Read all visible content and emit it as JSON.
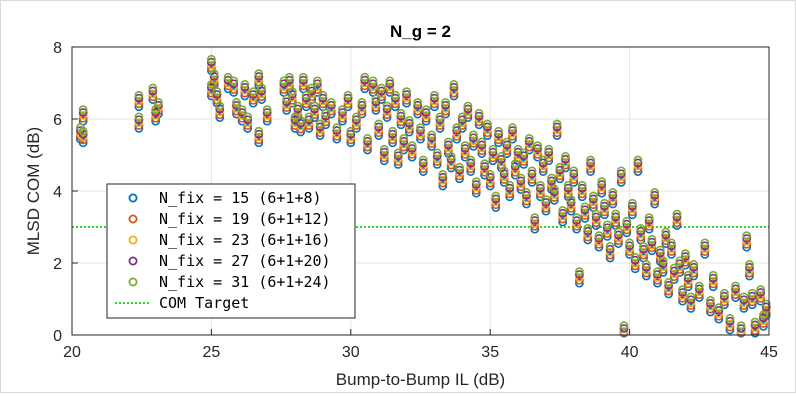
{
  "colors": {
    "background": "#ffffff",
    "axes": "#262626",
    "grid": "#e6e6e6",
    "target": "#22dd22"
  },
  "chart_data": {
    "type": "scatter",
    "title": "N_g = 2",
    "xlabel": "Bump-to-Bump IL (dB)",
    "ylabel": "MLSD COM (dB)",
    "xlim": [
      20,
      45
    ],
    "ylim": [
      0,
      8
    ],
    "xticks": [
      "20",
      "25",
      "30",
      "35",
      "40",
      "45"
    ],
    "yticks": [
      "0",
      "2",
      "4",
      "6",
      "8"
    ],
    "grid": true,
    "legend_position": "lower-left",
    "target": {
      "name": "COM Target",
      "y": 3,
      "color": "#22dd22",
      "style": "dotted"
    },
    "series": [
      {
        "name": "N_fix = 15 (6+1+8)",
        "color": "#0072bd",
        "dy": -0.16
      },
      {
        "name": "N_fix = 19 (6+1+12)",
        "color": "#d95319",
        "dy": -0.08
      },
      {
        "name": "N_fix = 23 (6+1+16)",
        "color": "#edb120",
        "dy": 0.0
      },
      {
        "name": "N_fix = 27 (6+1+20)",
        "color": "#7e2f8e",
        "dy": 0.08
      },
      {
        "name": "N_fix = 31 (6+1+24)",
        "color": "#77ac30",
        "dy": 0.16
      }
    ],
    "points": [
      [
        20.4,
        5.5
      ],
      [
        20.4,
        6.1
      ],
      [
        20.3,
        5.6
      ],
      [
        22.4,
        5.9
      ],
      [
        22.4,
        6.5
      ],
      [
        22.9,
        6.7
      ],
      [
        23.0,
        6.1
      ],
      [
        23.1,
        6.3
      ],
      [
        25.0,
        7.5
      ],
      [
        25.1,
        7.1
      ],
      [
        25.2,
        6.6
      ],
      [
        25.0,
        6.8
      ],
      [
        25.3,
        6.2
      ],
      [
        25.8,
        6.9
      ],
      [
        25.6,
        7.0
      ],
      [
        25.9,
        6.3
      ],
      [
        26.2,
        6.8
      ],
      [
        26.1,
        6.1
      ],
      [
        26.3,
        5.9
      ],
      [
        26.5,
        6.6
      ],
      [
        26.7,
        7.1
      ],
      [
        26.8,
        6.7
      ],
      [
        26.7,
        5.5
      ],
      [
        27.0,
        6.1
      ],
      [
        27.6,
        6.9
      ],
      [
        27.7,
        6.4
      ],
      [
        27.8,
        7.0
      ],
      [
        27.9,
        6.6
      ],
      [
        28.0,
        5.9
      ],
      [
        28.1,
        6.2
      ],
      [
        28.2,
        5.8
      ],
      [
        28.3,
        7.0
      ],
      [
        28.4,
        6.5
      ],
      [
        28.5,
        5.9
      ],
      [
        28.6,
        6.7
      ],
      [
        28.7,
        6.2
      ],
      [
        28.8,
        6.9
      ],
      [
        28.9,
        5.7
      ],
      [
        29.0,
        6.5
      ],
      [
        29.1,
        6.0
      ],
      [
        29.3,
        6.3
      ],
      [
        29.5,
        5.6
      ],
      [
        29.7,
        6.1
      ],
      [
        29.9,
        6.5
      ],
      [
        30.0,
        5.5
      ],
      [
        30.2,
        5.9
      ],
      [
        30.4,
        6.3
      ],
      [
        30.5,
        7.0
      ],
      [
        30.6,
        5.3
      ],
      [
        30.8,
        6.9
      ],
      [
        30.9,
        6.4
      ],
      [
        31.0,
        5.7
      ],
      [
        31.1,
        6.7
      ],
      [
        31.2,
        5.0
      ],
      [
        31.3,
        6.2
      ],
      [
        31.4,
        6.9
      ],
      [
        31.5,
        5.5
      ],
      [
        31.6,
        6.5
      ],
      [
        31.7,
        4.9
      ],
      [
        31.8,
        6.0
      ],
      [
        31.9,
        5.3
      ],
      [
        32.0,
        6.6
      ],
      [
        32.1,
        5.8
      ],
      [
        32.2,
        5.1
      ],
      [
        32.4,
        6.3
      ],
      [
        32.5,
        5.6
      ],
      [
        32.6,
        4.7
      ],
      [
        32.7,
        6.1
      ],
      [
        32.9,
        5.4
      ],
      [
        33.0,
        6.5
      ],
      [
        33.1,
        4.9
      ],
      [
        33.2,
        5.9
      ],
      [
        33.3,
        4.3
      ],
      [
        33.4,
        6.3
      ],
      [
        33.5,
        5.2
      ],
      [
        33.6,
        4.8
      ],
      [
        33.7,
        6.8
      ],
      [
        33.8,
        5.6
      ],
      [
        33.9,
        4.5
      ],
      [
        34.0,
        5.9
      ],
      [
        34.1,
        5.1
      ],
      [
        34.2,
        6.2
      ],
      [
        34.3,
        4.7
      ],
      [
        34.4,
        5.4
      ],
      [
        34.5,
        4.1
      ],
      [
        34.6,
        6.0
      ],
      [
        34.7,
        5.2
      ],
      [
        34.8,
        4.6
      ],
      [
        34.9,
        5.7
      ],
      [
        35.0,
        4.3
      ],
      [
        35.1,
        5.0
      ],
      [
        35.2,
        3.7
      ],
      [
        35.3,
        5.5
      ],
      [
        35.4,
        4.8
      ],
      [
        35.5,
        4.4
      ],
      [
        35.6,
        5.2
      ],
      [
        35.7,
        4.0
      ],
      [
        35.8,
        5.6
      ],
      [
        35.9,
        4.6
      ],
      [
        36.0,
        5.0
      ],
      [
        36.1,
        4.2
      ],
      [
        36.2,
        4.9
      ],
      [
        36.3,
        3.8
      ],
      [
        36.4,
        5.3
      ],
      [
        36.5,
        4.4
      ],
      [
        36.6,
        3.1
      ],
      [
        36.7,
        5.1
      ],
      [
        36.8,
        4.0
      ],
      [
        36.9,
        4.7
      ],
      [
        37.0,
        3.6
      ],
      [
        37.1,
        5.0
      ],
      [
        37.2,
        4.2
      ],
      [
        37.3,
        3.9
      ],
      [
        37.4,
        5.7
      ],
      [
        37.5,
        4.5
      ],
      [
        37.6,
        3.3
      ],
      [
        37.7,
        4.8
      ],
      [
        37.8,
        4.0
      ],
      [
        37.9,
        3.6
      ],
      [
        38.0,
        4.4
      ],
      [
        38.1,
        3.1
      ],
      [
        38.2,
        1.6
      ],
      [
        38.3,
        4.0
      ],
      [
        38.4,
        3.4
      ],
      [
        38.5,
        2.8
      ],
      [
        38.6,
        4.7
      ],
      [
        38.7,
        3.7
      ],
      [
        38.8,
        3.2
      ],
      [
        38.9,
        2.6
      ],
      [
        39.0,
        4.1
      ],
      [
        39.1,
        3.5
      ],
      [
        39.2,
        2.9
      ],
      [
        39.3,
        2.3
      ],
      [
        39.4,
        3.8
      ],
      [
        39.5,
        3.2
      ],
      [
        39.6,
        2.7
      ],
      [
        39.7,
        4.4
      ],
      [
        39.8,
        0.1
      ],
      [
        39.9,
        3.0
      ],
      [
        40.0,
        2.4
      ],
      [
        40.1,
        3.5
      ],
      [
        40.2,
        2.0
      ],
      [
        40.3,
        4.7
      ],
      [
        40.4,
        2.8
      ],
      [
        40.5,
        2.3
      ],
      [
        40.6,
        1.8
      ],
      [
        40.7,
        3.1
      ],
      [
        40.8,
        2.5
      ],
      [
        40.9,
        3.8
      ],
      [
        41.0,
        1.6
      ],
      [
        41.1,
        2.2
      ],
      [
        41.2,
        1.9
      ],
      [
        41.3,
        2.7
      ],
      [
        41.4,
        1.3
      ],
      [
        41.5,
        2.4
      ],
      [
        41.6,
        1.7
      ],
      [
        41.7,
        3.2
      ],
      [
        41.8,
        1.9
      ],
      [
        41.9,
        1.1
      ],
      [
        42.0,
        2.1
      ],
      [
        42.1,
        1.5
      ],
      [
        42.2,
        0.9
      ],
      [
        42.3,
        1.8
      ],
      [
        42.5,
        1.2
      ],
      [
        42.7,
        2.4
      ],
      [
        42.9,
        0.8
      ],
      [
        43.0,
        1.5
      ],
      [
        43.2,
        0.6
      ],
      [
        43.4,
        1.0
      ],
      [
        43.6,
        0.3
      ],
      [
        43.8,
        1.2
      ],
      [
        44.0,
        0.1
      ],
      [
        44.1,
        0.9
      ],
      [
        44.2,
        2.6
      ],
      [
        44.3,
        1.8
      ],
      [
        44.4,
        1.0
      ],
      [
        44.5,
        0.2
      ],
      [
        44.7,
        1.1
      ],
      [
        44.8,
        0.4
      ],
      [
        44.9,
        0.7
      ]
    ]
  }
}
